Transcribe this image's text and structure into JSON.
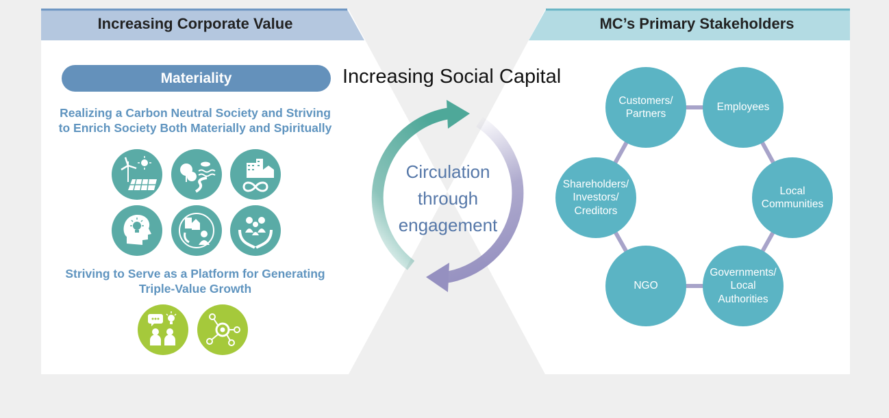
{
  "left_panel": {
    "header": "Increasing Corporate Value",
    "materiality_label": "Materiality",
    "carbon_text": "Realizing a Carbon Neutral Society and Striving to Enrich Society Both Materially and Spiritually",
    "carbon_text_line1": "Realizing a Carbon Neutral Society and Striving",
    "carbon_text_line2": "to Enrich Society Both Materially and Spiritually",
    "platform_text_line1": "Striving to Serve as a Platform for Generating",
    "platform_text_line2": "Triple-Value Growth",
    "materiality_icons": [
      "wind-solar-icon",
      "forest-water-icon",
      "city-infinity-icon",
      "lightbulb-head-icon",
      "community-cycle-icon",
      "hands-people-icon"
    ],
    "platform_icons": [
      "people-ideas-icon",
      "network-hub-icon"
    ]
  },
  "center": {
    "social_capital_label": "Increasing Social Capital",
    "circulation_line1": "Circulation",
    "circulation_line2": "through",
    "circulation_line3": "engagement"
  },
  "right_panel": {
    "header": "MC’s Primary Stakeholders",
    "stakeholders": [
      {
        "line1": "Customers/",
        "line2": "Partners",
        "line3": ""
      },
      {
        "line1": "Employees",
        "line2": "",
        "line3": ""
      },
      {
        "line1": "Local",
        "line2": "Communities",
        "line3": ""
      },
      {
        "line1": "Governments/",
        "line2": "Local",
        "line3": "Authorities"
      },
      {
        "line1": "NGO",
        "line2": "",
        "line3": ""
      },
      {
        "line1": "Shareholders/",
        "line2": "Investors/",
        "line3": "Creditors"
      }
    ]
  },
  "colors": {
    "left_header": "#b4c7df",
    "right_header": "#b3dbe3",
    "materiality_pill": "#6491bb",
    "icon_teal": "#5aaba6",
    "icon_green": "#a5c93b",
    "stakeholder_node": "#5bb4c4",
    "ring_connector": "#a7a3c9",
    "arrow_teal": "#5bab9e",
    "arrow_purple": "#9b96c2"
  }
}
